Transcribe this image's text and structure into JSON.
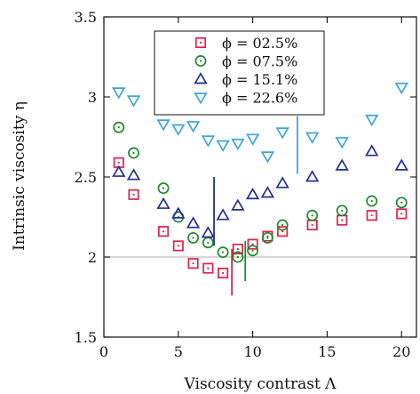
{
  "chart_data": {
    "type": "scatter",
    "xlabel": "Viscosity contrast Λ",
    "ylabel": "Intrinsic viscosity η",
    "xlim": [
      0,
      21
    ],
    "ylim": [
      1.5,
      3.5
    ],
    "x_ticks": [
      0,
      5,
      10,
      15,
      20
    ],
    "y_ticks": [
      1.5,
      2,
      2.5,
      3,
      3.5
    ],
    "x_tick_labels": [
      "0",
      "5",
      "10",
      "15",
      "20"
    ],
    "y_tick_labels": [
      "1.5",
      "2",
      "2.5",
      "3",
      "3.5"
    ],
    "grid": false,
    "legend_position": "top-center",
    "reference_line": {
      "y": 2,
      "color": "#c8c8c8"
    },
    "series": [
      {
        "name": "ϕ = 02.5%",
        "marker": "square-dot",
        "color": "#e0204a",
        "points": [
          [
            1,
            2.59
          ],
          [
            2,
            2.39
          ],
          [
            4,
            2.16
          ],
          [
            5,
            2.07
          ],
          [
            6,
            1.96
          ],
          [
            7,
            1.93
          ],
          [
            8,
            1.9
          ],
          [
            9,
            2.05
          ],
          [
            10,
            2.08
          ],
          [
            11,
            2.13
          ],
          [
            12,
            2.16
          ],
          [
            14,
            2.2
          ],
          [
            16,
            2.23
          ],
          [
            18,
            2.26
          ],
          [
            20,
            2.27
          ]
        ]
      },
      {
        "name": "ϕ = 07.5%",
        "marker": "circle-dot",
        "color": "#1e8a2e",
        "points": [
          [
            1,
            2.81
          ],
          [
            2,
            2.65
          ],
          [
            4,
            2.43
          ],
          [
            5,
            2.25
          ],
          [
            6,
            2.12
          ],
          [
            7,
            2.09
          ],
          [
            8,
            2.03
          ],
          [
            9,
            2.0
          ],
          [
            10,
            2.04
          ],
          [
            11,
            2.12
          ],
          [
            12,
            2.2
          ],
          [
            14,
            2.26
          ],
          [
            16,
            2.29
          ],
          [
            18,
            2.35
          ],
          [
            20,
            2.34
          ]
        ]
      },
      {
        "name": "ϕ = 15.1%",
        "marker": "triangle-up",
        "color": "#232e96",
        "points": [
          [
            1,
            2.53
          ],
          [
            2,
            2.51
          ],
          [
            4,
            2.33
          ],
          [
            5,
            2.27
          ],
          [
            6,
            2.21
          ],
          [
            7,
            2.15
          ],
          [
            8,
            2.26
          ],
          [
            9,
            2.32
          ],
          [
            10,
            2.39
          ],
          [
            11,
            2.4
          ],
          [
            12,
            2.46
          ],
          [
            14,
            2.5
          ],
          [
            16,
            2.57
          ],
          [
            18,
            2.66
          ],
          [
            20,
            2.57
          ]
        ]
      },
      {
        "name": "ϕ = 22.6%",
        "marker": "triangle-down",
        "color": "#3ba5dc",
        "points": [
          [
            1,
            3.03
          ],
          [
            2,
            2.98
          ],
          [
            4,
            2.83
          ],
          [
            5,
            2.8
          ],
          [
            6,
            2.82
          ],
          [
            7,
            2.73
          ],
          [
            8,
            2.7
          ],
          [
            9,
            2.71
          ],
          [
            10,
            2.74
          ],
          [
            11,
            2.63
          ],
          [
            12,
            2.78
          ],
          [
            14,
            2.75
          ],
          [
            16,
            2.72
          ],
          [
            18,
            2.86
          ],
          [
            20,
            3.06
          ]
        ]
      }
    ],
    "vertical_markers": [
      {
        "x": 7.4,
        "y_from": 2.07,
        "y_to": 2.5,
        "color": "#232e96"
      },
      {
        "x": 8.6,
        "y_from": 1.76,
        "y_to": 2.05,
        "color": "#e0204a"
      },
      {
        "x": 9.5,
        "y_from": 1.85,
        "y_to": 2.1,
        "color": "#1e8a2e"
      },
      {
        "x": 13.0,
        "y_from": 2.52,
        "y_to": 2.88,
        "color": "#3ba5dc"
      }
    ]
  }
}
